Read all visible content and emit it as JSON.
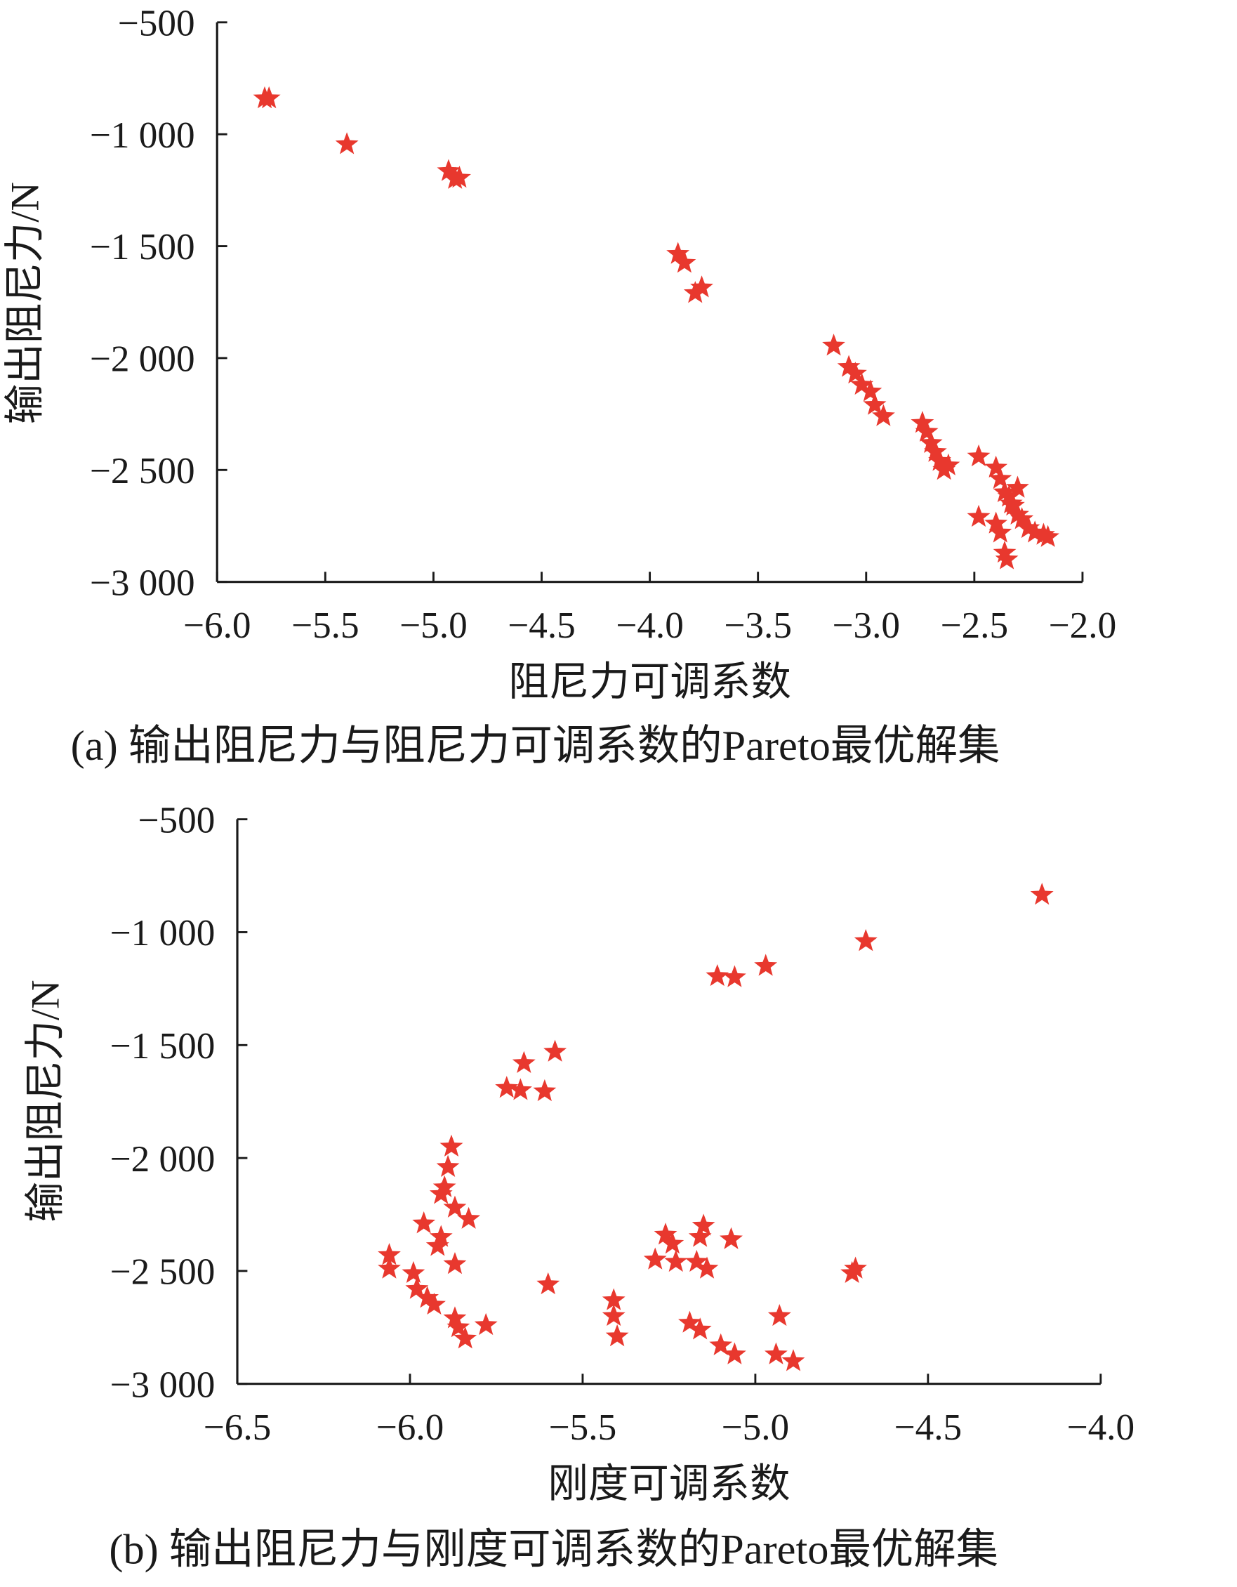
{
  "marker_color": "#e8382e",
  "marker": "star",
  "chart_data": [
    {
      "type": "scatter",
      "caption": "(a)  输出阻尼力与阻尼力可调系数的Pareto最优解集",
      "xlabel": "阻尼力可调系数",
      "ylabel": "输出阻尼力/N",
      "xlim": [
        -6.0,
        -2.0
      ],
      "ylim": [
        -3000,
        -500
      ],
      "xticks": [
        -6.0,
        -5.5,
        -5.0,
        -4.5,
        -4.0,
        -3.5,
        -3.0,
        -2.5,
        -2.0
      ],
      "xtick_labels": [
        "−6.0",
        "−5.5",
        "−5.0",
        "−4.5",
        "−4.0",
        "−3.5",
        "−3.0",
        "−2.5",
        "−2.0"
      ],
      "yticks": [
        -500,
        -1000,
        -1500,
        -2000,
        -2500,
        -3000
      ],
      "ytick_labels": [
        "−500",
        "−1 000",
        "−1 500",
        "−2 000",
        "−2 500",
        "−3 000"
      ],
      "grid": false,
      "points": [
        [
          -5.78,
          -840
        ],
        [
          -5.76,
          -840
        ],
        [
          -5.4,
          -1045
        ],
        [
          -4.93,
          -1165
        ],
        [
          -4.9,
          -1200
        ],
        [
          -4.88,
          -1195
        ],
        [
          -3.87,
          -1535
        ],
        [
          -3.84,
          -1575
        ],
        [
          -3.79,
          -1710
        ],
        [
          -3.76,
          -1685
        ],
        [
          -3.15,
          -1945
        ],
        [
          -3.08,
          -2040
        ],
        [
          -3.05,
          -2070
        ],
        [
          -3.02,
          -2120
        ],
        [
          -2.98,
          -2150
        ],
        [
          -2.96,
          -2210
        ],
        [
          -2.92,
          -2260
        ],
        [
          -2.74,
          -2290
        ],
        [
          -2.72,
          -2330
        ],
        [
          -2.7,
          -2380
        ],
        [
          -2.68,
          -2420
        ],
        [
          -2.66,
          -2460
        ],
        [
          -2.64,
          -2500
        ],
        [
          -2.62,
          -2480
        ],
        [
          -2.48,
          -2440
        ],
        [
          -2.4,
          -2490
        ],
        [
          -2.38,
          -2540
        ],
        [
          -2.36,
          -2600
        ],
        [
          -2.34,
          -2620
        ],
        [
          -2.32,
          -2660
        ],
        [
          -2.3,
          -2700
        ],
        [
          -2.28,
          -2720
        ],
        [
          -2.25,
          -2760
        ],
        [
          -2.22,
          -2780
        ],
        [
          -2.18,
          -2790
        ],
        [
          -2.16,
          -2800
        ],
        [
          -2.48,
          -2710
        ],
        [
          -2.4,
          -2740
        ],
        [
          -2.38,
          -2780
        ],
        [
          -2.36,
          -2870
        ],
        [
          -2.35,
          -2900
        ],
        [
          -2.33,
          -2650
        ],
        [
          -2.3,
          -2580
        ]
      ]
    },
    {
      "type": "scatter",
      "caption": "(b)  输出阻尼力与刚度可调系数的Pareto最优解集",
      "xlabel": "刚度可调系数",
      "ylabel": "输出阻尼力/N",
      "xlim": [
        -6.5,
        -4.0
      ],
      "ylim": [
        -3000,
        -500
      ],
      "xticks": [
        -6.5,
        -6.0,
        -5.5,
        -5.0,
        -4.5,
        -4.0
      ],
      "xtick_labels": [
        "−6.5",
        "−6.0",
        "−5.5",
        "−5.0",
        "−4.5",
        "−4.0"
      ],
      "yticks": [
        -500,
        -1000,
        -1500,
        -2000,
        -2500,
        -3000
      ],
      "ytick_labels": [
        "−500",
        "−1 000",
        "−1 500",
        "−2 000",
        "−2 500",
        "−3 000"
      ],
      "grid": false,
      "points": [
        [
          -4.17,
          -835
        ],
        [
          -4.68,
          -1040
        ],
        [
          -4.97,
          -1150
        ],
        [
          -5.06,
          -1200
        ],
        [
          -5.11,
          -1195
        ],
        [
          -5.58,
          -1530
        ],
        [
          -5.67,
          -1580
        ],
        [
          -5.72,
          -1690
        ],
        [
          -5.68,
          -1700
        ],
        [
          -5.61,
          -1705
        ],
        [
          -5.88,
          -1950
        ],
        [
          -5.89,
          -2040
        ],
        [
          -5.9,
          -2130
        ],
        [
          -5.91,
          -2160
        ],
        [
          -5.87,
          -2220
        ],
        [
          -5.83,
          -2270
        ],
        [
          -5.96,
          -2290
        ],
        [
          -5.91,
          -2350
        ],
        [
          -5.92,
          -2390
        ],
        [
          -5.87,
          -2470
        ],
        [
          -6.06,
          -2430
        ],
        [
          -6.06,
          -2490
        ],
        [
          -5.99,
          -2510
        ],
        [
          -5.98,
          -2580
        ],
        [
          -5.95,
          -2620
        ],
        [
          -5.93,
          -2650
        ],
        [
          -5.87,
          -2710
        ],
        [
          -5.86,
          -2750
        ],
        [
          -5.84,
          -2800
        ],
        [
          -5.78,
          -2740
        ],
        [
          -5.6,
          -2560
        ],
        [
          -5.41,
          -2630
        ],
        [
          -5.41,
          -2700
        ],
        [
          -5.4,
          -2790
        ],
        [
          -5.26,
          -2340
        ],
        [
          -5.24,
          -2380
        ],
        [
          -5.29,
          -2450
        ],
        [
          -5.23,
          -2460
        ],
        [
          -5.15,
          -2300
        ],
        [
          -5.16,
          -2350
        ],
        [
          -5.17,
          -2460
        ],
        [
          -5.14,
          -2490
        ],
        [
          -5.07,
          -2360
        ],
        [
          -5.19,
          -2730
        ],
        [
          -5.16,
          -2760
        ],
        [
          -5.1,
          -2830
        ],
        [
          -5.06,
          -2870
        ],
        [
          -4.94,
          -2870
        ],
        [
          -4.89,
          -2900
        ],
        [
          -4.93,
          -2700
        ],
        [
          -4.72,
          -2510
        ],
        [
          -4.71,
          -2490
        ]
      ]
    }
  ]
}
